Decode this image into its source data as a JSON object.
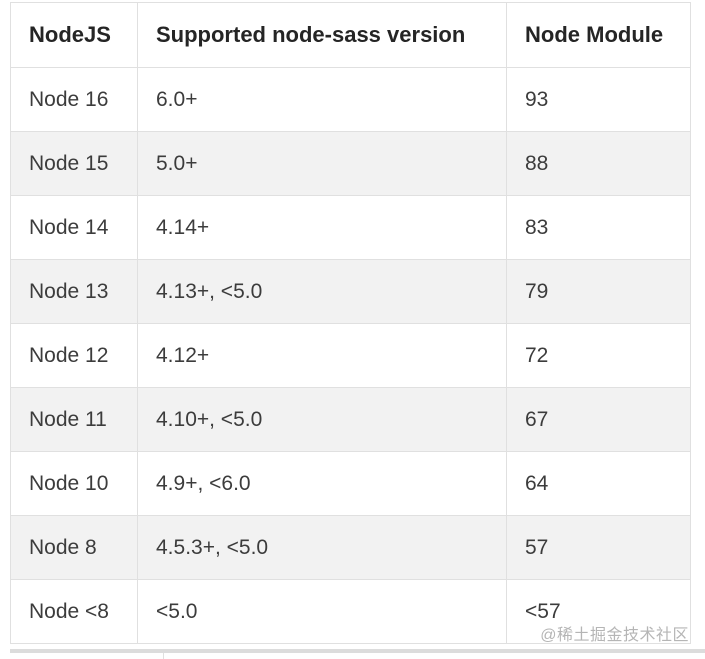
{
  "table": {
    "headers": [
      "NodeJS",
      "Supported node-sass version",
      "Node Module"
    ],
    "rows": [
      {
        "nodejs": "Node 16",
        "sass": "6.0+",
        "module": "93"
      },
      {
        "nodejs": "Node 15",
        "sass": "5.0+",
        "module": "88"
      },
      {
        "nodejs": "Node 14",
        "sass": "4.14+",
        "module": "83"
      },
      {
        "nodejs": "Node 13",
        "sass": "4.13+, <5.0",
        "module": "79"
      },
      {
        "nodejs": "Node 12",
        "sass": "4.12+",
        "module": "72"
      },
      {
        "nodejs": "Node 11",
        "sass": "4.10+, <5.0",
        "module": "67"
      },
      {
        "nodejs": "Node 10",
        "sass": "4.9+, <6.0",
        "module": "64"
      },
      {
        "nodejs": "Node 8",
        "sass": "4.5.3+, <5.0",
        "module": "57"
      },
      {
        "nodejs": "Node <8",
        "sass": "<5.0",
        "module": "<57"
      }
    ]
  },
  "watermark": "@稀土掘金技术社区",
  "colors": {
    "row_stripe": "#f2f2f2",
    "border": "#e0e0e0",
    "header_text": "#252525",
    "body_text": "#3c3c3c",
    "watermark_text": "#b5b5b5"
  }
}
